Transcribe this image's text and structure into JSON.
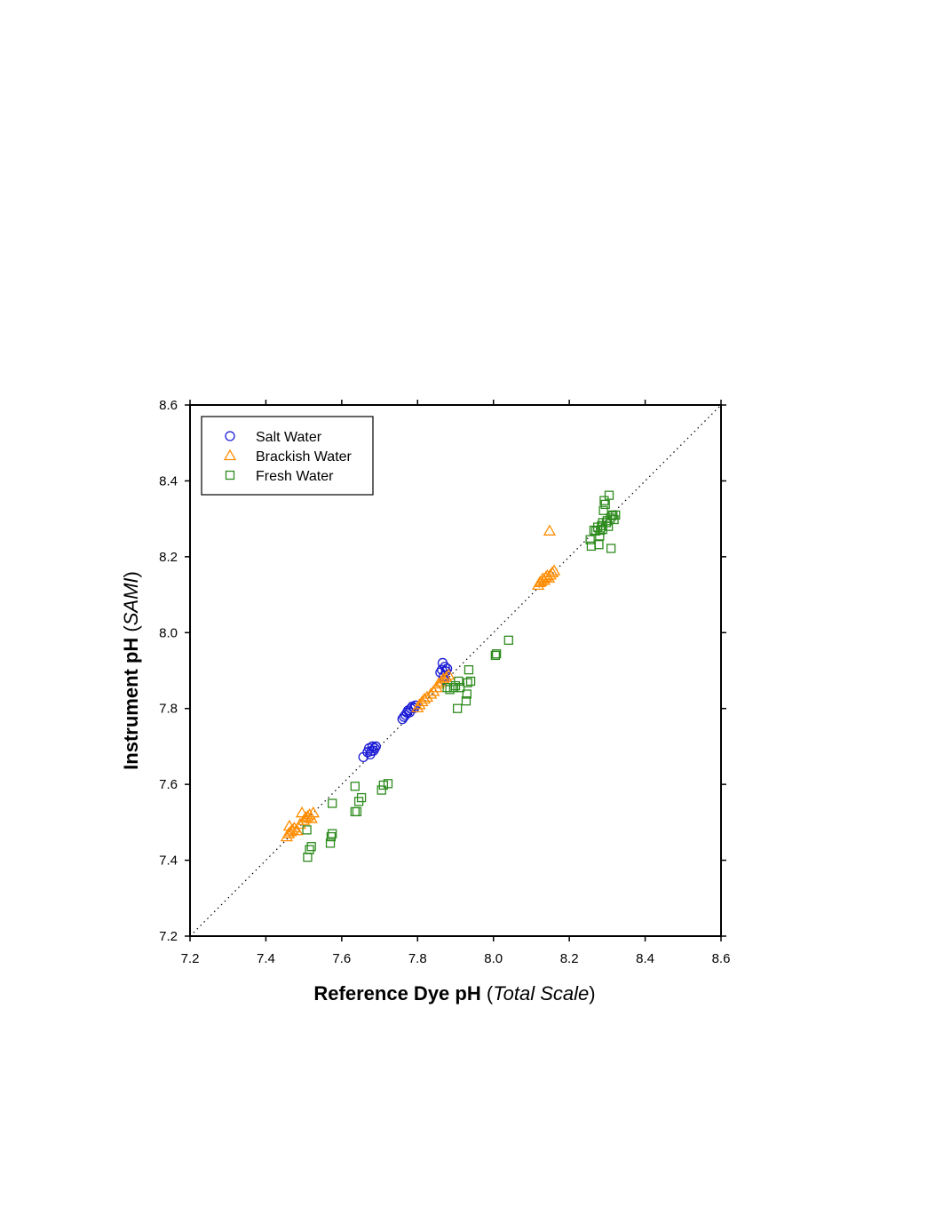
{
  "chart_data": {
    "type": "scatter",
    "xlim": [
      7.2,
      8.6
    ],
    "ylim": [
      7.2,
      8.6
    ],
    "xticks": [
      "7.2",
      "7.4",
      "7.6",
      "7.8",
      "8.0",
      "8.2",
      "8.4",
      "8.6"
    ],
    "yticks": [
      "7.2",
      "7.4",
      "7.6",
      "7.8",
      "8.0",
      "8.2",
      "8.4",
      "8.6"
    ],
    "xlabel": {
      "main": "Reference Dye pH",
      "open": " (",
      "italic": "Total Scale",
      "close": ")"
    },
    "ylabel": {
      "main": "Instrument pH",
      "open": " (",
      "italic": "SAMI",
      "close": ")"
    },
    "grid": false,
    "legend_position": "top-left",
    "reference_line": {
      "style": "dotted",
      "from": [
        7.2,
        7.2
      ],
      "to": [
        8.6,
        8.6
      ]
    },
    "series": [
      {
        "name": "Salt Water",
        "marker": "circle",
        "color": "#1a1ad6",
        "points": [
          [
            7.657,
            7.672
          ],
          [
            7.668,
            7.685
          ],
          [
            7.672,
            7.695
          ],
          [
            7.675,
            7.679
          ],
          [
            7.678,
            7.688
          ],
          [
            7.681,
            7.7
          ],
          [
            7.684,
            7.689
          ],
          [
            7.687,
            7.695
          ],
          [
            7.69,
            7.7
          ],
          [
            7.76,
            7.772
          ],
          [
            7.764,
            7.778
          ],
          [
            7.768,
            7.783
          ],
          [
            7.772,
            7.789
          ],
          [
            7.775,
            7.795
          ],
          [
            7.779,
            7.79
          ],
          [
            7.782,
            7.8
          ],
          [
            7.786,
            7.805
          ],
          [
            7.791,
            7.801
          ],
          [
            7.795,
            7.808
          ],
          [
            7.86,
            7.895
          ],
          [
            7.864,
            7.902
          ],
          [
            7.866,
            7.92
          ],
          [
            7.869,
            7.885
          ],
          [
            7.872,
            7.91
          ],
          [
            7.875,
            7.898
          ],
          [
            7.878,
            7.905
          ],
          [
            7.87,
            7.875
          ]
        ]
      },
      {
        "name": "Brackish Water",
        "marker": "triangle",
        "color": "#ff8c00",
        "points": [
          [
            7.455,
            7.462
          ],
          [
            7.46,
            7.47
          ],
          [
            7.465,
            7.475
          ],
          [
            7.47,
            7.48
          ],
          [
            7.475,
            7.485
          ],
          [
            7.482,
            7.478
          ],
          [
            7.49,
            7.495
          ],
          [
            7.495,
            7.525
          ],
          [
            7.5,
            7.505
          ],
          [
            7.505,
            7.512
          ],
          [
            7.51,
            7.515
          ],
          [
            7.515,
            7.52
          ],
          [
            7.52,
            7.51
          ],
          [
            7.525,
            7.525
          ],
          [
            7.462,
            7.49
          ],
          [
            7.8,
            7.802
          ],
          [
            7.805,
            7.81
          ],
          [
            7.812,
            7.818
          ],
          [
            7.818,
            7.825
          ],
          [
            7.825,
            7.83
          ],
          [
            7.835,
            7.838
          ],
          [
            7.842,
            7.845
          ],
          [
            7.85,
            7.855
          ],
          [
            7.855,
            7.865
          ],
          [
            7.862,
            7.87
          ],
          [
            7.868,
            7.878
          ],
          [
            7.875,
            7.882
          ],
          [
            7.882,
            7.888
          ],
          [
            8.118,
            8.125
          ],
          [
            8.122,
            8.132
          ],
          [
            8.126,
            8.135
          ],
          [
            8.13,
            8.142
          ],
          [
            8.134,
            8.138
          ],
          [
            8.138,
            8.146
          ],
          [
            8.142,
            8.15
          ],
          [
            8.146,
            8.144
          ],
          [
            8.15,
            8.152
          ],
          [
            8.155,
            8.158
          ],
          [
            8.16,
            8.163
          ],
          [
            8.148,
            8.268
          ]
        ]
      },
      {
        "name": "Fresh Water",
        "marker": "square",
        "color": "#2e8b1e",
        "points": [
          [
            7.51,
            7.408
          ],
          [
            7.515,
            7.428
          ],
          [
            7.52,
            7.436
          ],
          [
            7.508,
            7.48
          ],
          [
            7.57,
            7.445
          ],
          [
            7.572,
            7.462
          ],
          [
            7.575,
            7.47
          ],
          [
            7.575,
            7.55
          ],
          [
            7.635,
            7.528
          ],
          [
            7.64,
            7.528
          ],
          [
            7.645,
            7.555
          ],
          [
            7.652,
            7.565
          ],
          [
            7.635,
            7.595
          ],
          [
            7.705,
            7.585
          ],
          [
            7.71,
            7.598
          ],
          [
            7.722,
            7.602
          ],
          [
            7.878,
            7.855
          ],
          [
            7.885,
            7.85
          ],
          [
            7.895,
            7.855
          ],
          [
            7.9,
            7.86
          ],
          [
            7.905,
            7.8
          ],
          [
            7.908,
            7.872
          ],
          [
            7.912,
            7.855
          ],
          [
            7.928,
            7.82
          ],
          [
            7.93,
            7.838
          ],
          [
            7.932,
            7.868
          ],
          [
            7.935,
            7.902
          ],
          [
            7.94,
            7.872
          ],
          [
            8.005,
            7.94
          ],
          [
            8.008,
            7.944
          ],
          [
            8.04,
            7.98
          ],
          [
            8.255,
            8.245
          ],
          [
            8.258,
            8.228
          ],
          [
            8.265,
            8.27
          ],
          [
            8.27,
            8.268
          ],
          [
            8.275,
            8.278
          ],
          [
            8.278,
            8.232
          ],
          [
            8.28,
            8.255
          ],
          [
            8.282,
            8.27
          ],
          [
            8.285,
            8.282
          ],
          [
            8.288,
            8.29
          ],
          [
            8.29,
            8.322
          ],
          [
            8.292,
            8.348
          ],
          [
            8.295,
            8.338
          ],
          [
            8.298,
            8.29
          ],
          [
            8.3,
            8.295
          ],
          [
            8.303,
            8.28
          ],
          [
            8.305,
            8.362
          ],
          [
            8.308,
            8.302
          ],
          [
            8.31,
            8.222
          ],
          [
            8.312,
            8.308
          ],
          [
            8.315,
            8.31
          ],
          [
            8.318,
            8.298
          ],
          [
            8.322,
            8.31
          ],
          [
            8.288,
            8.272
          ]
        ]
      }
    ]
  }
}
